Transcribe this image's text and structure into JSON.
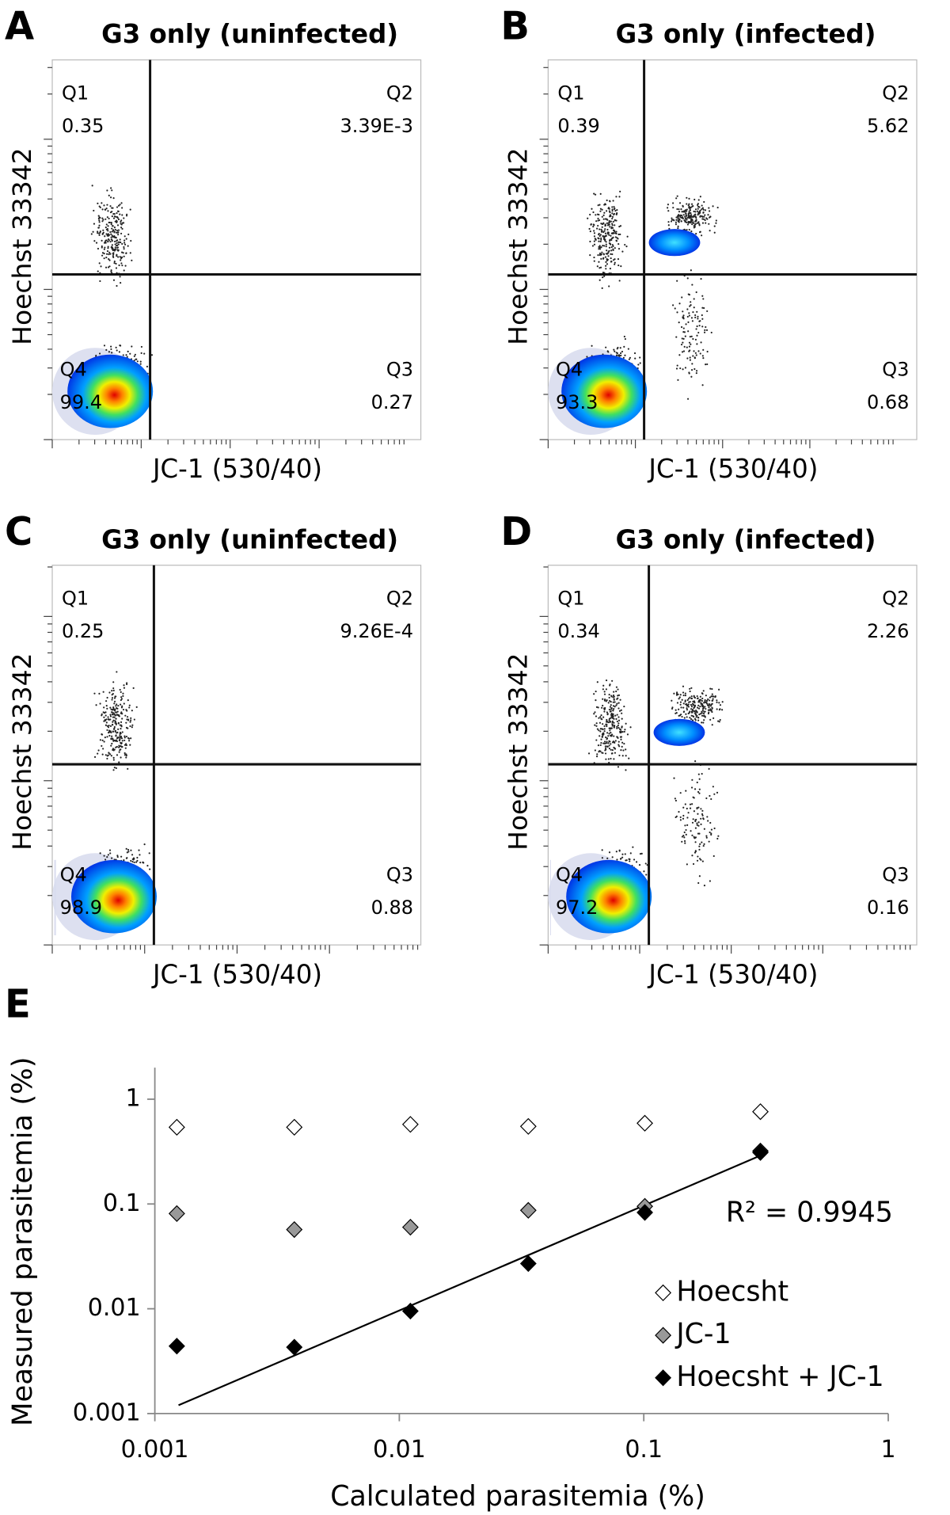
{
  "panels": [
    {
      "letter": "A",
      "title": "G3 only (uninfected)",
      "x_label": "JC-1 (530/40)",
      "y_label": "Hoechst 33342",
      "quadrants": [
        {
          "name": "Q1",
          "value": "0.35"
        },
        {
          "name": "Q2",
          "value": "3.39E-3"
        },
        {
          "name": "Q3",
          "value": "0.27"
        },
        {
          "name": "Q4",
          "value": "99.4"
        }
      ]
    },
    {
      "letter": "B",
      "title": "G3 only (infected)",
      "x_label": "JC-1 (530/40)",
      "y_label": "Hoechst 33342",
      "quadrants": [
        {
          "name": "Q1",
          "value": "0.39"
        },
        {
          "name": "Q2",
          "value": "5.62"
        },
        {
          "name": "Q3",
          "value": "0.68"
        },
        {
          "name": "Q4",
          "value": "93.3"
        }
      ]
    },
    {
      "letter": "C",
      "title": "G3 only (uninfected)",
      "x_label": "JC-1 (530/40)",
      "y_label": "Hoechst 33342",
      "quadrants": [
        {
          "name": "Q1",
          "value": "0.25"
        },
        {
          "name": "Q2",
          "value": "9.26E-4"
        },
        {
          "name": "Q3",
          "value": "0.88"
        },
        {
          "name": "Q4",
          "value": "98.9"
        }
      ]
    },
    {
      "letter": "D",
      "title": "G3 only (infected)",
      "x_label": "JC-1 (530/40)",
      "y_label": "Hoechst 33342",
      "quadrants": [
        {
          "name": "Q1",
          "value": "0.34"
        },
        {
          "name": "Q2",
          "value": "2.26"
        },
        {
          "name": "Q3",
          "value": "0.16"
        },
        {
          "name": "Q4",
          "value": "97.2"
        }
      ]
    }
  ],
  "chart_data": {
    "type": "scatter",
    "letter": "E",
    "x_label": "Calculated parasitemia (%)",
    "y_label": "Measured parasitemia (%)",
    "log_scale": true,
    "xlim": [
      0.001,
      1
    ],
    "ylim": [
      0.001,
      2
    ],
    "xticks": [
      0.001,
      0.01,
      0.1,
      1
    ],
    "yticks": [
      0.001,
      0.01,
      0.1,
      1
    ],
    "x": [
      0.00123,
      0.00372,
      0.0111,
      0.0337,
      0.101,
      0.3
    ],
    "series": [
      {
        "name": "Hoecsht",
        "color": "#ffffff",
        "values": [
          0.54,
          0.54,
          0.575,
          0.55,
          0.59,
          0.76
        ]
      },
      {
        "name": "JC-1",
        "color": "#999999",
        "values": [
          0.081,
          0.057,
          0.06,
          0.087,
          0.095,
          0.32
        ]
      },
      {
        "name": "Hoecsht + JC-1",
        "color": "#000000",
        "values": [
          0.0044,
          0.0043,
          0.0095,
          0.027,
          0.083,
          0.31
        ]
      }
    ],
    "trendline": {
      "label": "R² = 0.9945",
      "x": [
        0.00125,
        0.3
      ],
      "y": [
        0.0012,
        0.29
      ]
    }
  }
}
